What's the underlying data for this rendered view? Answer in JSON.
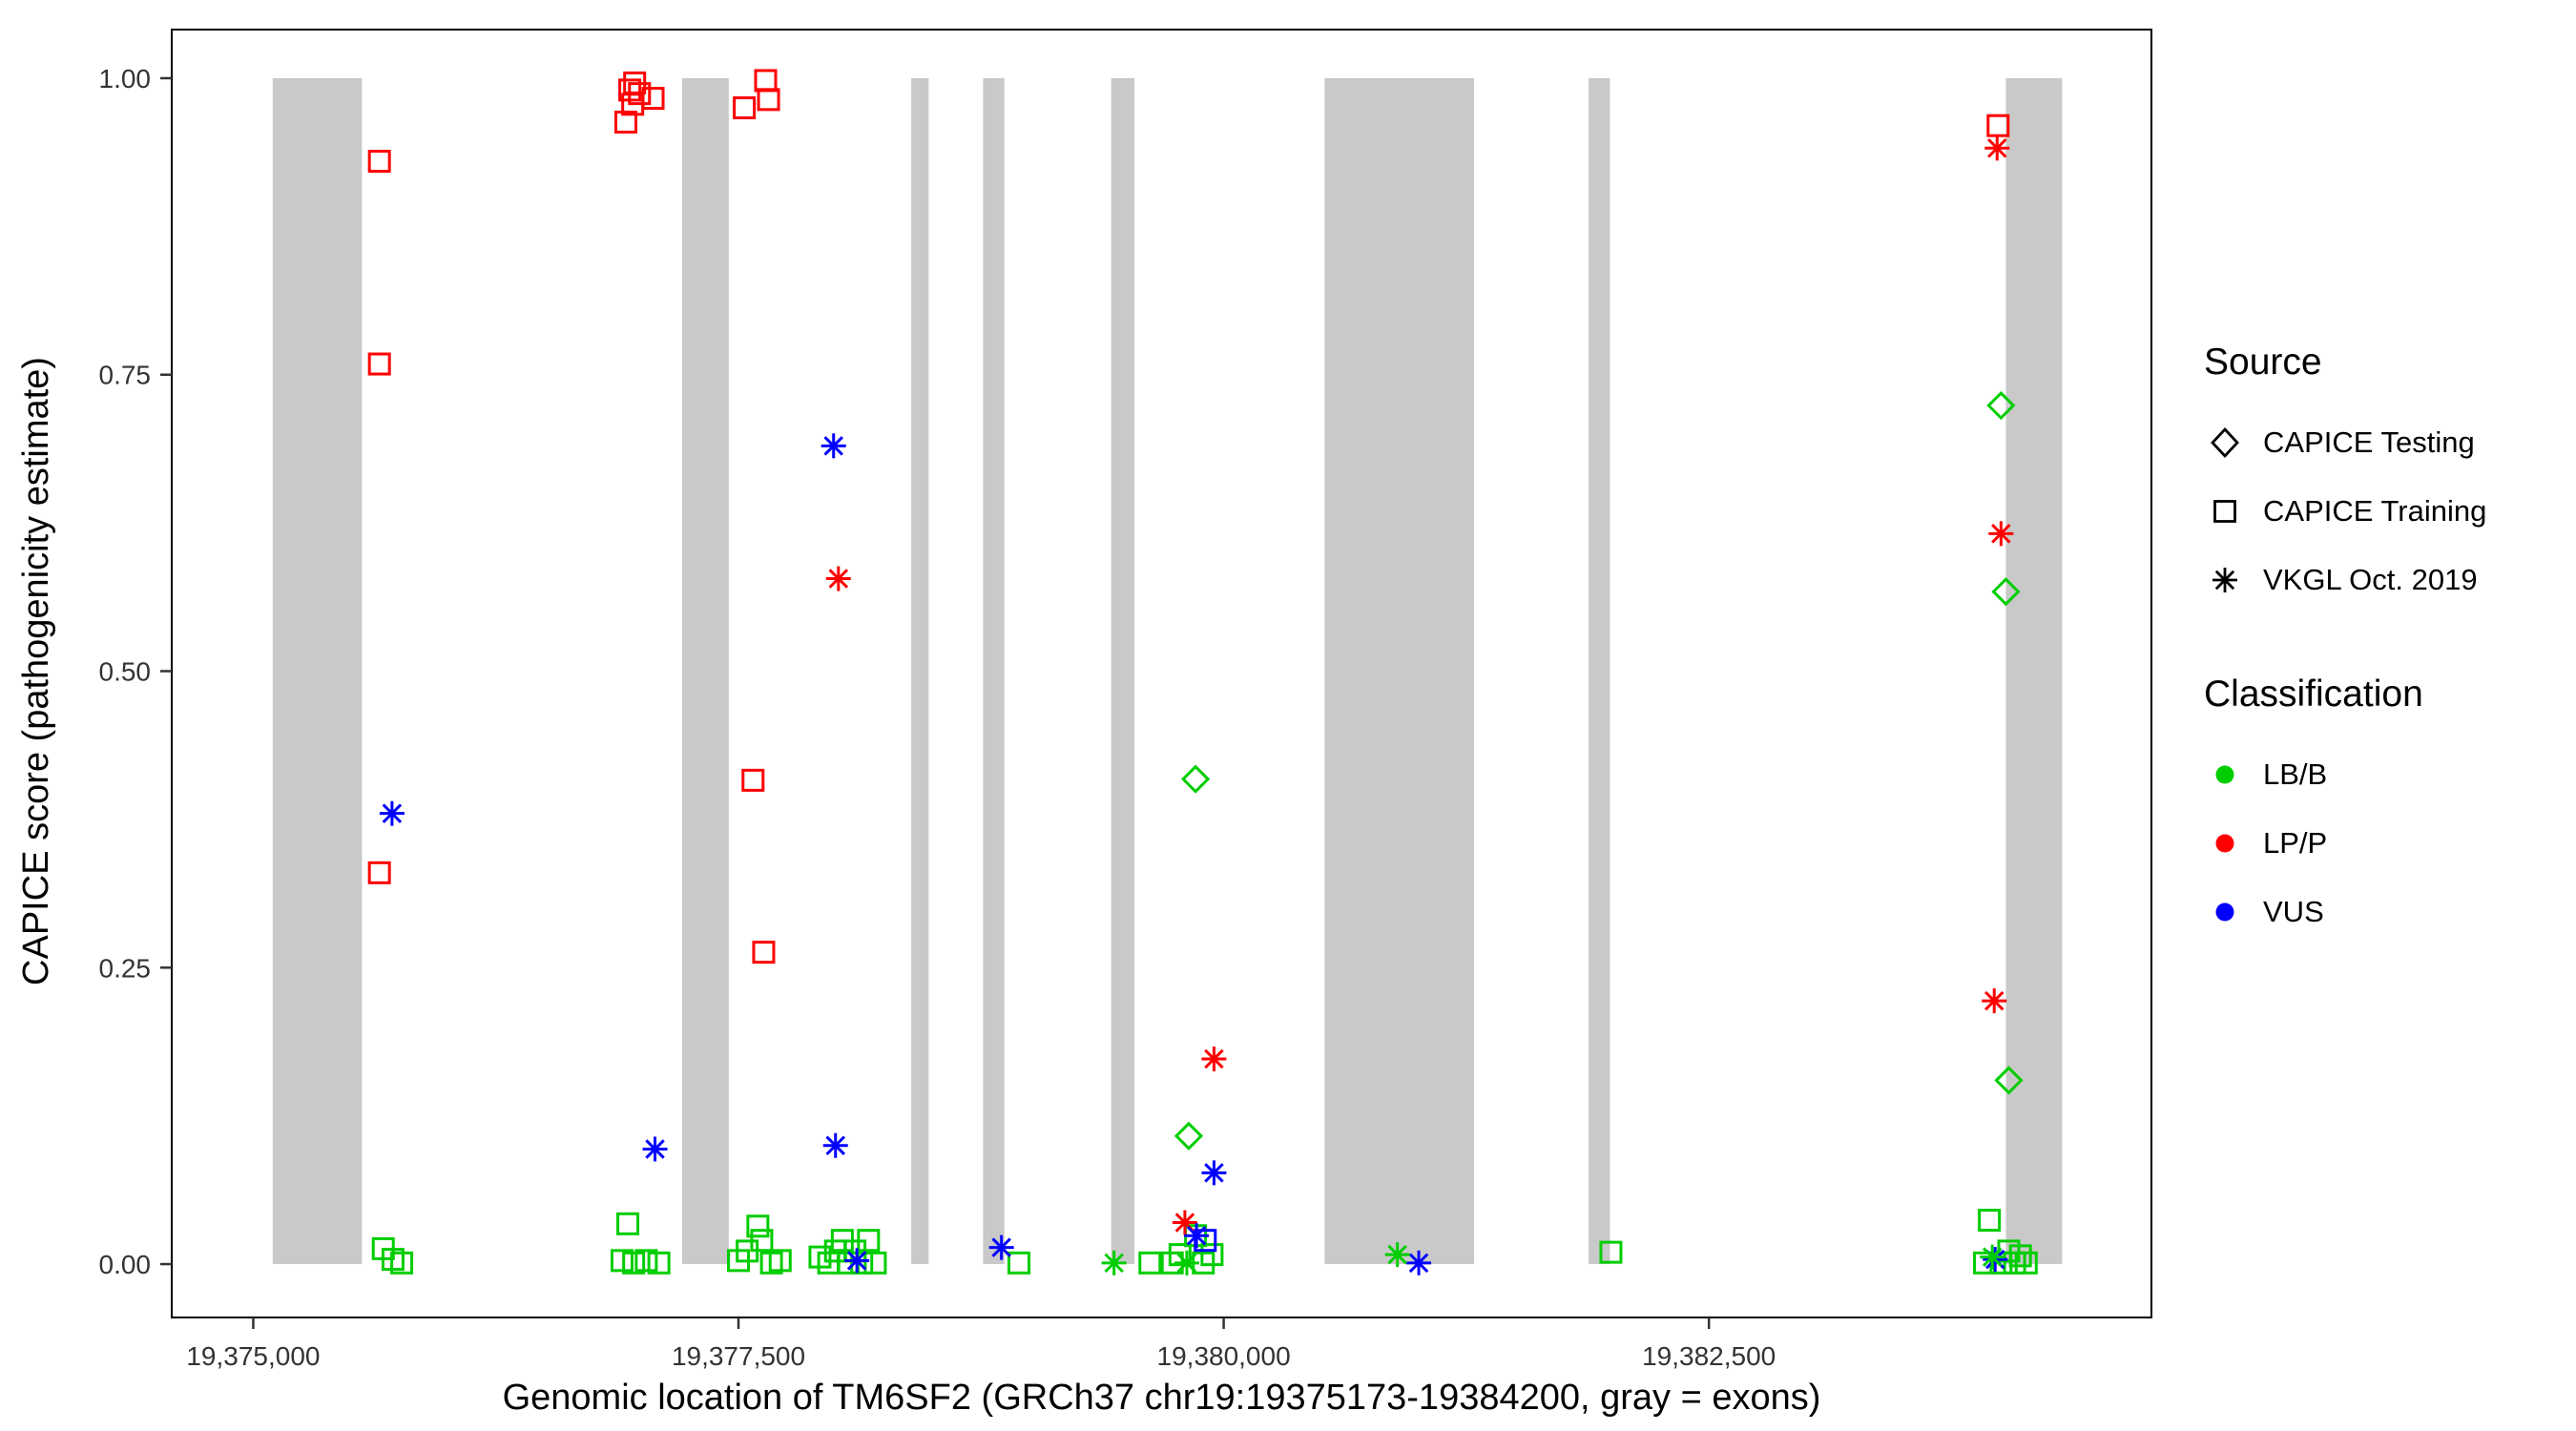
{
  "chart_data": {
    "type": "scatter",
    "title": "",
    "xlabel": "Genomic location of TM6SF2 (GRCh37 chr19:19375173-19384200, gray = exons)",
    "ylabel": "CAPICE score (pathogenicity estimate)",
    "xlim": [
      19374580,
      19384780
    ],
    "ylim": [
      -0.045,
      1.041
    ],
    "grid": false,
    "legend_position": "right",
    "x_ticks": [
      {
        "value": 19375000,
        "label": "19,375,000"
      },
      {
        "value": 19377500,
        "label": "19,377,500"
      },
      {
        "value": 19380000,
        "label": "19,380,000"
      },
      {
        "value": 19382500,
        "label": "19,382,500"
      }
    ],
    "y_ticks": [
      {
        "value": 0.0,
        "label": "0.00"
      },
      {
        "value": 0.25,
        "label": "0.25"
      },
      {
        "value": 0.5,
        "label": "0.50"
      },
      {
        "value": 0.75,
        "label": "0.75"
      },
      {
        "value": 1.0,
        "label": "1.00"
      }
    ],
    "colors": {
      "LB/B": "#00CD00",
      "LP/P": "#FF0000",
      "VUS": "#0000FF",
      "exon": "#C9C9C9"
    },
    "shapes": {
      "CAPICE Testing": "diamond",
      "CAPICE Training": "square",
      "VKGL Oct. 2019": "asterisk"
    },
    "exons": [
      [
        19375100,
        19375560
      ],
      [
        19377210,
        19377450
      ],
      [
        19378390,
        19378480
      ],
      [
        19378760,
        19378870
      ],
      [
        19379420,
        19379540
      ],
      [
        19380520,
        19381290
      ],
      [
        19381880,
        19381990
      ],
      [
        19384030,
        19384320
      ]
    ],
    "series": [
      {
        "source": "CAPICE Training",
        "classification": "LP/P",
        "points": [
          [
            19375650,
            0.93
          ],
          [
            19375650,
            0.759
          ],
          [
            19375650,
            0.33
          ],
          [
            19376920,
            0.963
          ],
          [
            19376940,
            0.99
          ],
          [
            19376965,
            0.996
          ],
          [
            19376990,
            0.987
          ],
          [
            19376955,
            0.978
          ],
          [
            19377060,
            0.983
          ],
          [
            19377530,
            0.975
          ],
          [
            19377640,
            0.998
          ],
          [
            19377655,
            0.982
          ],
          [
            19377575,
            0.408
          ],
          [
            19377630,
            0.263
          ],
          [
            19383990,
            0.96
          ]
        ]
      },
      {
        "source": "CAPICE Training",
        "classification": "LB/B",
        "points": [
          [
            19375670,
            0.013
          ],
          [
            19375720,
            0.004
          ],
          [
            19375765,
            0.001
          ],
          [
            19376930,
            0.034
          ],
          [
            19376900,
            0.003
          ],
          [
            19376960,
            0.001
          ],
          [
            19377025,
            0.003
          ],
          [
            19377090,
            0.001
          ],
          [
            19377500,
            0.003
          ],
          [
            19377545,
            0.011
          ],
          [
            19377600,
            0.032
          ],
          [
            19377620,
            0.02
          ],
          [
            19377670,
            0.001
          ],
          [
            19377715,
            0.003
          ],
          [
            19377920,
            0.006
          ],
          [
            19377965,
            0.001
          ],
          [
            19378000,
            0.011
          ],
          [
            19378035,
            0.02
          ],
          [
            19378065,
            0.001
          ],
          [
            19378100,
            0.011
          ],
          [
            19378135,
            0.001
          ],
          [
            19378170,
            0.02
          ],
          [
            19378205,
            0.001
          ],
          [
            19378945,
            0.001
          ],
          [
            19379620,
            0.001
          ],
          [
            19379735,
            0.001
          ],
          [
            19379775,
            0.008
          ],
          [
            19379855,
            0.024
          ],
          [
            19379895,
            0.001
          ],
          [
            19379940,
            0.008
          ],
          [
            19381995,
            0.01
          ],
          [
            19383945,
            0.037
          ],
          [
            19383920,
            0.001
          ],
          [
            19384005,
            0.001
          ],
          [
            19384045,
            0.011
          ],
          [
            19384075,
            0.001
          ],
          [
            19384105,
            0.007
          ],
          [
            19384135,
            0.001
          ]
        ]
      },
      {
        "source": "CAPICE Training",
        "classification": "VUS",
        "points": [
          [
            19379905,
            0.02
          ]
        ]
      },
      {
        "source": "CAPICE Testing",
        "classification": "LB/B",
        "points": [
          [
            19379855,
            0.409
          ],
          [
            19379820,
            0.108
          ],
          [
            19384005,
            0.724
          ],
          [
            19384030,
            0.567
          ],
          [
            19384045,
            0.155
          ]
        ]
      },
      {
        "source": "VKGL Oct. 2019",
        "classification": "LP/P",
        "points": [
          [
            19378015,
            0.578
          ],
          [
            19379950,
            0.173
          ],
          [
            19379800,
            0.035
          ],
          [
            19383985,
            0.941
          ],
          [
            19384005,
            0.616
          ],
          [
            19383970,
            0.222
          ]
        ]
      },
      {
        "source": "VKGL Oct. 2019",
        "classification": "VUS",
        "points": [
          [
            19375715,
            0.38
          ],
          [
            19377070,
            0.097
          ],
          [
            19377990,
            0.69
          ],
          [
            19378000,
            0.1
          ],
          [
            19378110,
            0.003
          ],
          [
            19378855,
            0.014
          ],
          [
            19379950,
            0.077
          ],
          [
            19379860,
            0.024
          ],
          [
            19381005,
            0.001
          ],
          [
            19383975,
            0.004
          ]
        ]
      },
      {
        "source": "VKGL Oct. 2019",
        "classification": "LB/B",
        "points": [
          [
            19379435,
            0.001
          ],
          [
            19379810,
            0.001
          ],
          [
            19380895,
            0.008
          ],
          [
            19383960,
            0.006
          ]
        ]
      }
    ]
  },
  "legend": {
    "source": {
      "title": "Source",
      "items": [
        {
          "label": "CAPICE Testing",
          "shape": "diamond"
        },
        {
          "label": "CAPICE Training",
          "shape": "square"
        },
        {
          "label": "VKGL Oct. 2019",
          "shape": "asterisk"
        }
      ]
    },
    "classification": {
      "title": "Classification",
      "items": [
        {
          "label": "LB/B",
          "color": "#00CD00"
        },
        {
          "label": "LP/P",
          "color": "#FF0000"
        },
        {
          "label": "VUS",
          "color": "#0000FF"
        }
      ]
    }
  }
}
